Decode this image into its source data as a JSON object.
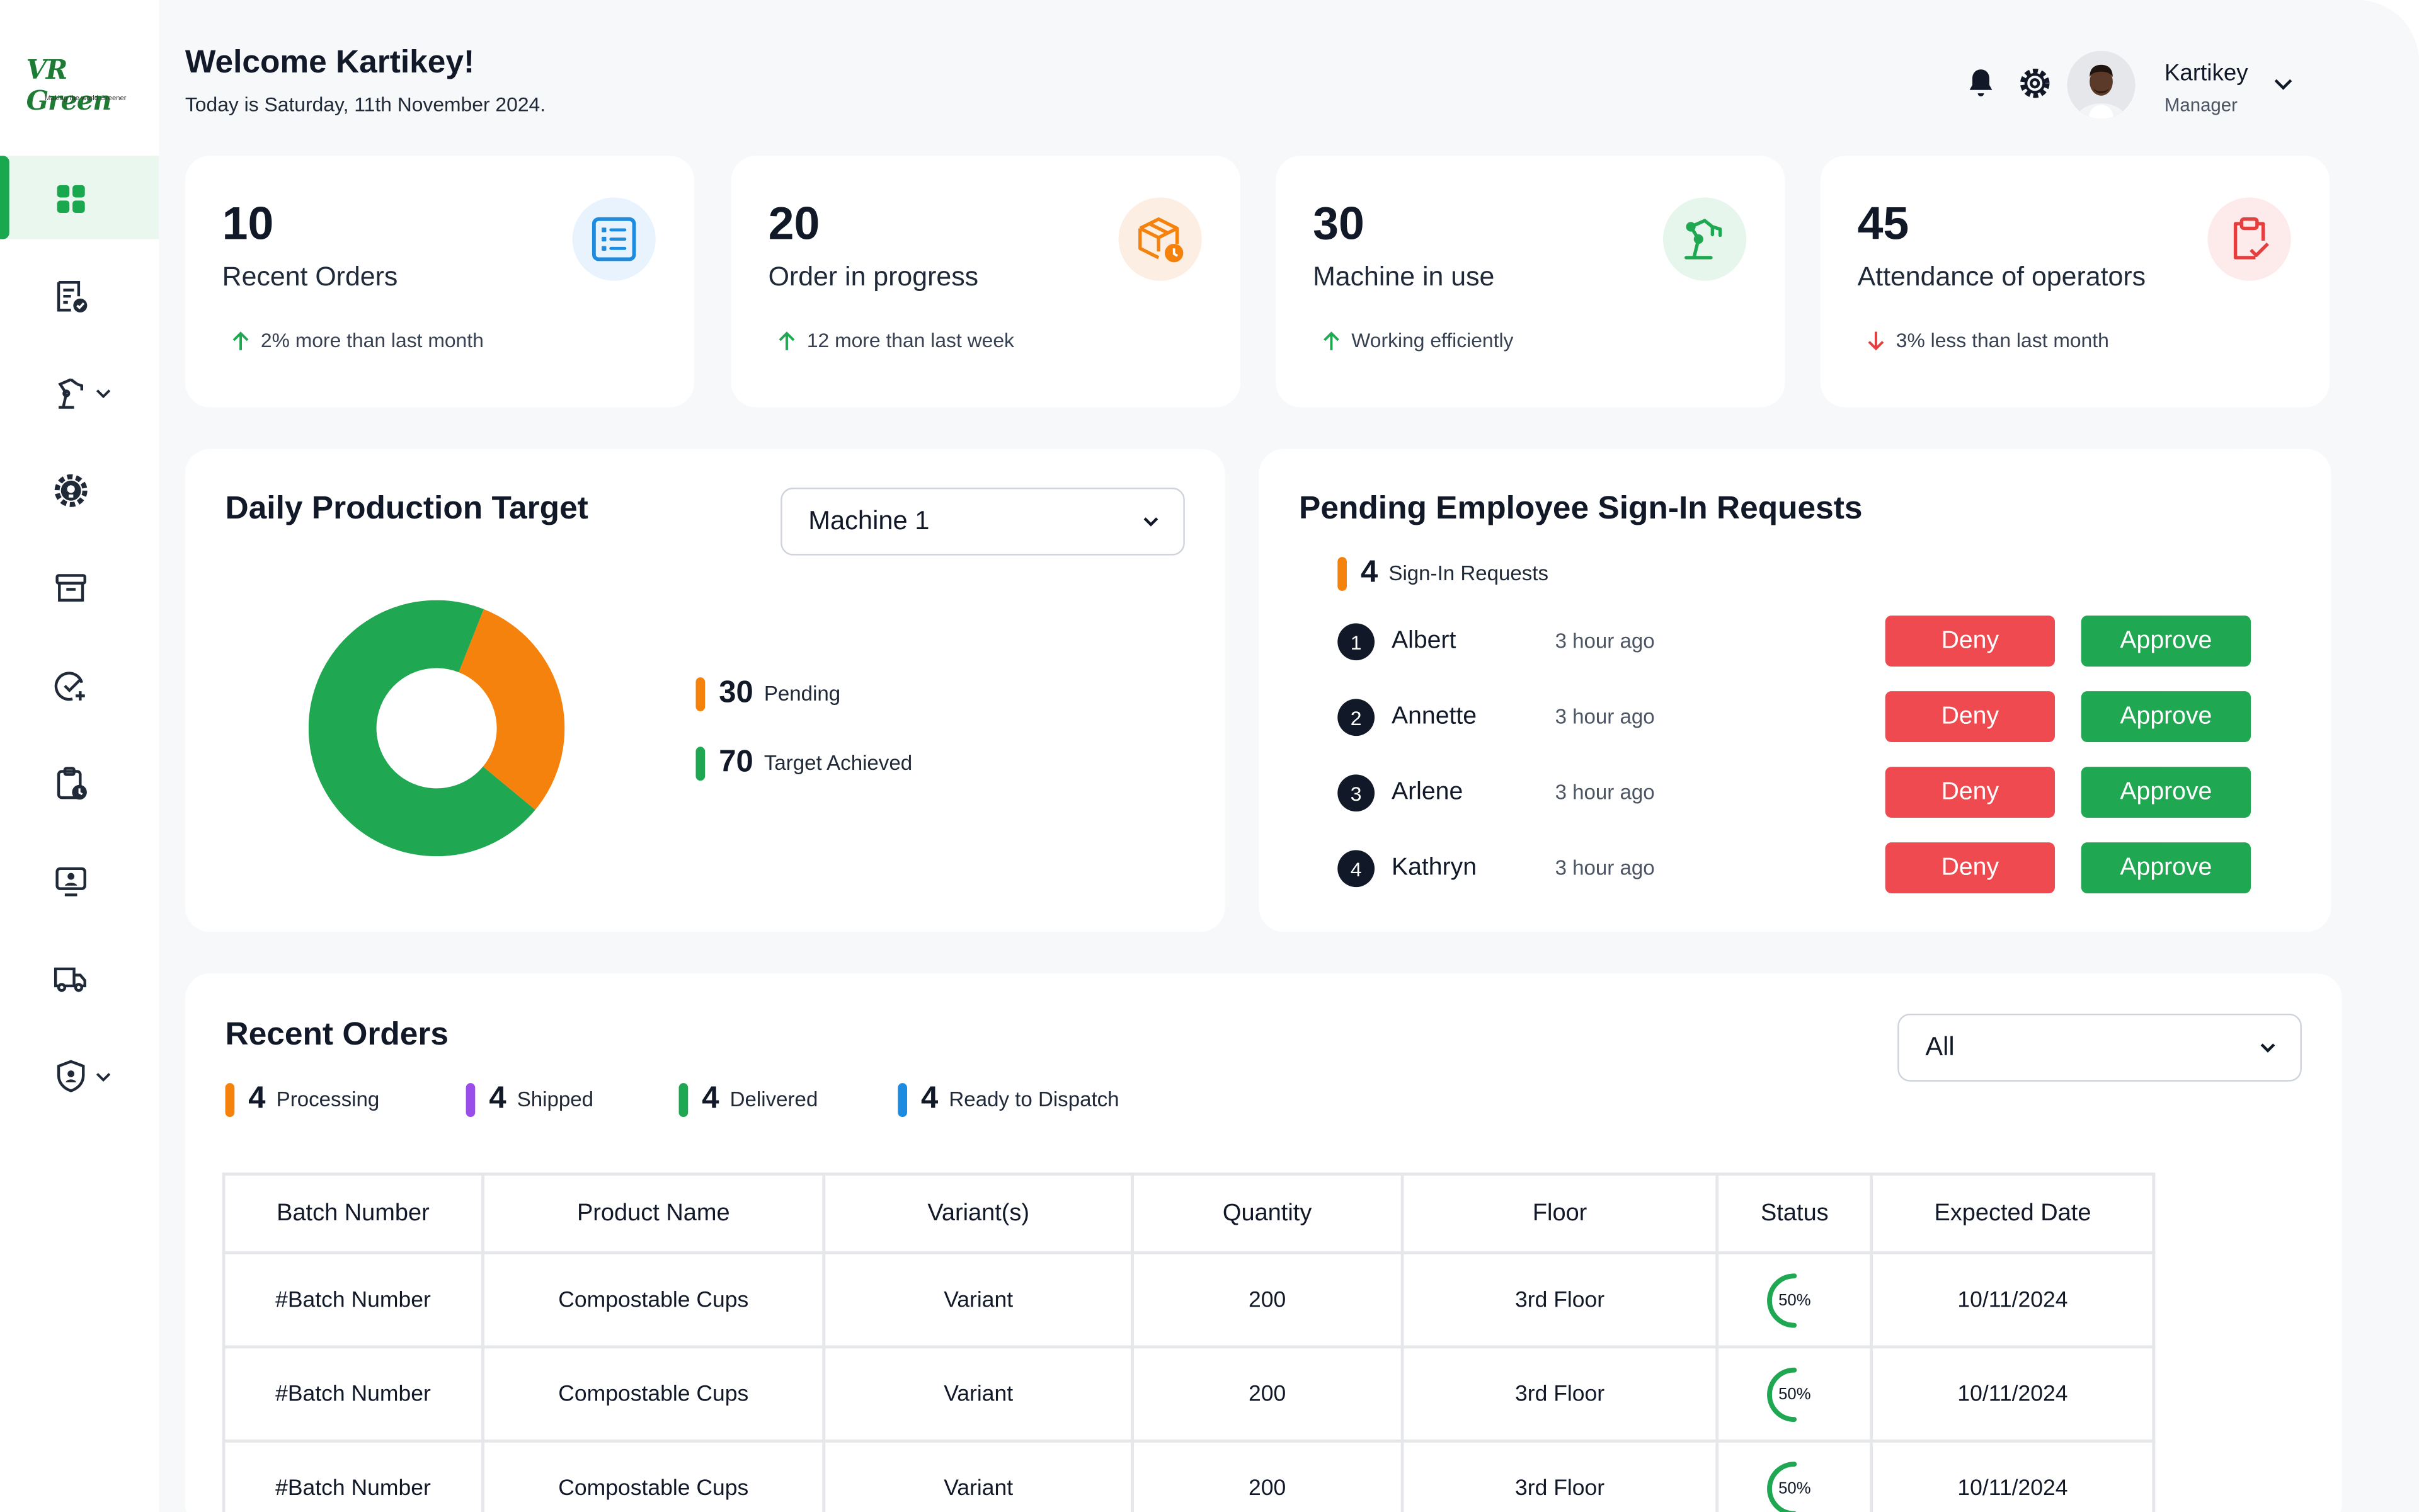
{
  "brand": {
    "logo_text": "VR Green",
    "tagline": "Making the world Greener"
  },
  "header": {
    "welcome": "Welcome Kartikey!",
    "date": "Today is Saturday, 11th November 2024.",
    "user_name": "Kartikey",
    "user_role": "Manager"
  },
  "sidebar": {
    "items": [
      {
        "icon": "dashboard-grid-icon",
        "active": true
      },
      {
        "icon": "orders-icon"
      },
      {
        "icon": "machine-arm-icon",
        "expandable": true
      },
      {
        "icon": "settings-gear-icon"
      },
      {
        "icon": "archive-box-icon"
      },
      {
        "icon": "check-add-icon"
      },
      {
        "icon": "clipboard-clock-icon"
      },
      {
        "icon": "monitor-user-icon"
      },
      {
        "icon": "truck-icon"
      },
      {
        "icon": "shield-user-icon",
        "expandable": true
      }
    ]
  },
  "stats": [
    {
      "value": "10",
      "label": "Recent Orders",
      "trend": "2% more than last month",
      "direction": "up",
      "icon": "list-document-icon",
      "color": "#1d8ce0",
      "bg": "#e8f3fd"
    },
    {
      "value": "20",
      "label": "Order in progress",
      "trend": "12 more than last week",
      "direction": "up",
      "icon": "box-clock-icon",
      "color": "#f5820d",
      "bg": "#fdeee3"
    },
    {
      "value": "30",
      "label": "Machine in use",
      "trend": "Working efficiently",
      "direction": "up",
      "icon": "robot-arm-icon",
      "color": "#1fa751",
      "bg": "#e7f6ec"
    },
    {
      "value": "45",
      "label": "Attendance of operators",
      "trend": "3% less than last month",
      "direction": "down",
      "icon": "clipboard-check-icon",
      "color": "#e53e3e",
      "bg": "#fdeaea"
    }
  ],
  "production": {
    "title": "Daily Production Target",
    "machine_select": "Machine 1",
    "legend": [
      {
        "value": "30",
        "label": "Pending",
        "color": "#f5820d"
      },
      {
        "value": "70",
        "label": "Target Achieved",
        "color": "#1fa751"
      }
    ]
  },
  "chart_data": {
    "type": "pie",
    "categories": [
      "Pending",
      "Target Achieved"
    ],
    "values": [
      30,
      70
    ],
    "colors": [
      "#f5820d",
      "#1fa751"
    ]
  },
  "signin": {
    "title": "Pending Employee Sign-In Requests",
    "count": "4",
    "count_label": "Sign-In Requests",
    "deny_label": "Deny",
    "approve_label": "Approve",
    "requests": [
      {
        "index": "1",
        "name": "Albert",
        "time": "3 hour ago"
      },
      {
        "index": "2",
        "name": "Annette",
        "time": "3 hour ago"
      },
      {
        "index": "3",
        "name": "Arlene",
        "time": "3 hour ago"
      },
      {
        "index": "4",
        "name": "Kathryn",
        "time": "3 hour ago"
      }
    ]
  },
  "recent_orders": {
    "title": "Recent Orders",
    "filter": "All",
    "summary": [
      {
        "count": "4",
        "label": "Processing",
        "color": "#f5820d"
      },
      {
        "count": "4",
        "label": "Shipped",
        "color": "#9b4dea"
      },
      {
        "count": "4",
        "label": "Delivered",
        "color": "#1fa751"
      },
      {
        "count": "4",
        "label": "Ready to Dispatch",
        "color": "#1d8ce0"
      }
    ],
    "columns": [
      "Batch Number",
      "Product Name",
      "Variant(s)",
      "Quantity",
      "Floor",
      "Status",
      "Expected Date"
    ],
    "rows": [
      {
        "batch": "#Batch Number",
        "product": "Compostable Cups",
        "variant": "Variant",
        "quantity": "200",
        "floor": "3rd Floor",
        "status": "50%",
        "progress": 0.5,
        "date": "10/11/2024"
      },
      {
        "batch": "#Batch Number",
        "product": "Compostable Cups",
        "variant": "Variant",
        "quantity": "200",
        "floor": "3rd Floor",
        "status": "50%",
        "progress": 0.5,
        "date": "10/11/2024"
      },
      {
        "batch": "#Batch Number",
        "product": "Compostable Cups",
        "variant": "Variant",
        "quantity": "200",
        "floor": "3rd Floor",
        "status": "50%",
        "progress": 0.5,
        "date": "10/11/2024"
      }
    ]
  }
}
